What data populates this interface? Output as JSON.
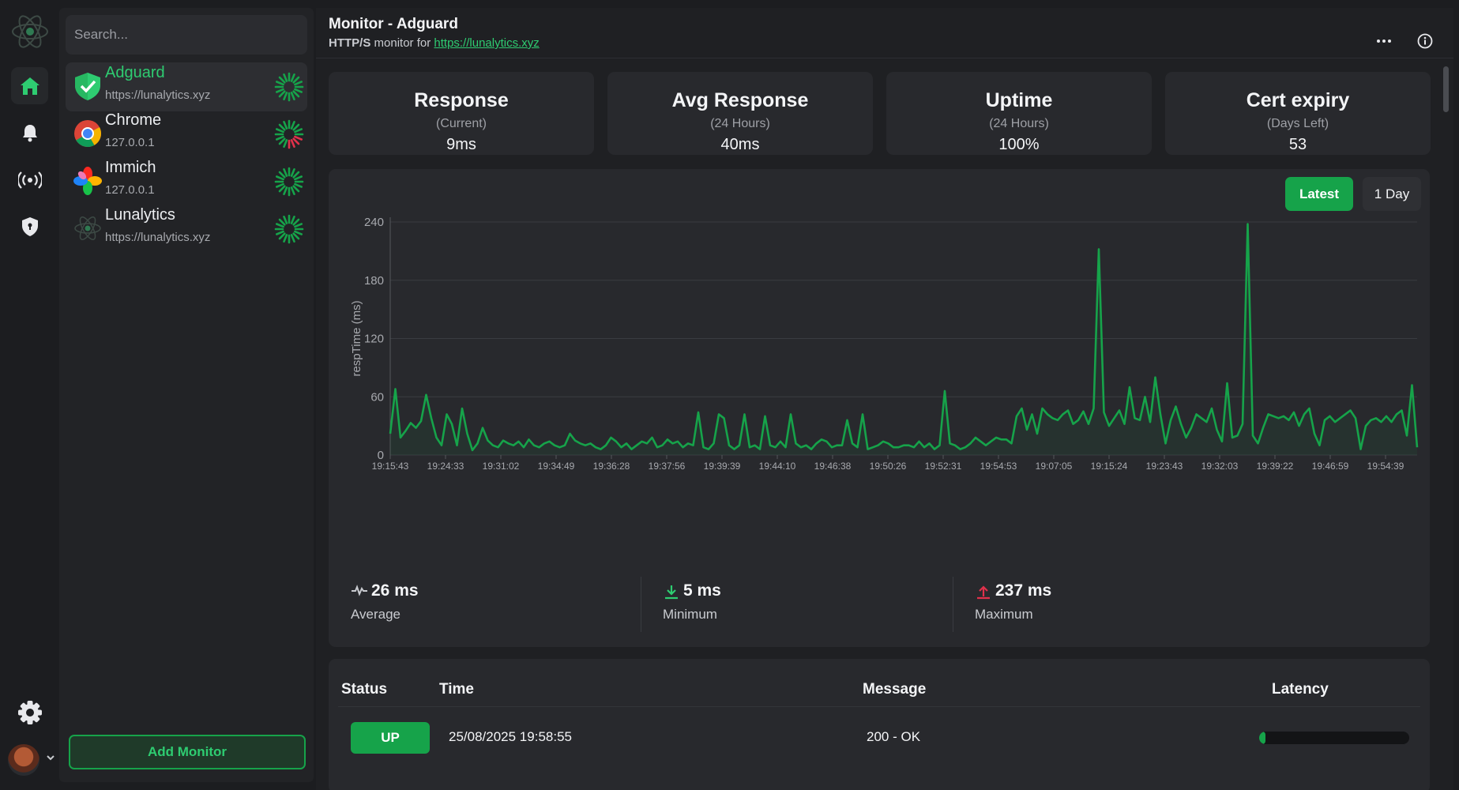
{
  "colors": {
    "accent": "#16a34a",
    "accent_light": "#2ecc71",
    "danger": "#e0314b",
    "bg": "#1c1d20",
    "card": "#28292d"
  },
  "rail": {
    "icons": [
      "atom-logo-icon",
      "home-icon",
      "bell-icon",
      "broadcast-icon",
      "shield-icon",
      "gear-icon",
      "avatar",
      "chevron-down-icon"
    ]
  },
  "search": {
    "placeholder": "Search..."
  },
  "monitors": [
    {
      "name": "Adguard",
      "url": "https://lunalytics.xyz",
      "icon": "adguard-icon",
      "status": "up"
    },
    {
      "name": "Chrome",
      "url": "127.0.0.1",
      "icon": "chrome-icon",
      "status": "mixed"
    },
    {
      "name": "Immich",
      "url": "127.0.0.1",
      "icon": "immich-icon",
      "status": "up"
    },
    {
      "name": "Lunalytics",
      "url": "https://lunalytics.xyz",
      "icon": "lunalytics-icon",
      "status": "up"
    }
  ],
  "add_monitor_label": "Add Monitor",
  "header": {
    "title": "Monitor - Adguard",
    "type": "HTTP/S",
    "monitor_for": "monitor for",
    "url": "https://lunalytics.xyz"
  },
  "stats": [
    {
      "title": "Response",
      "sub": "(Current)",
      "value": "9ms"
    },
    {
      "title": "Avg Response",
      "sub": "(24 Hours)",
      "value": "40ms"
    },
    {
      "title": "Uptime",
      "sub": "(24 Hours)",
      "value": "100%"
    },
    {
      "title": "Cert expiry",
      "sub": "(Days Left)",
      "value": "53"
    }
  ],
  "range_buttons": {
    "latest": "Latest",
    "day": "1 Day"
  },
  "chart_data": {
    "type": "area",
    "title": "",
    "xlabel": "",
    "ylabel": "respTime (ms)",
    "ylim": [
      0,
      240
    ],
    "yticks": [
      0,
      60,
      120,
      180,
      240
    ],
    "x_ticks": [
      "19:15:43",
      "19:24:33",
      "19:31:02",
      "19:34:49",
      "19:36:28",
      "19:37:56",
      "19:39:39",
      "19:44:10",
      "19:46:38",
      "19:50:26",
      "19:52:31",
      "19:54:53",
      "19:07:05",
      "19:15:24",
      "19:23:43",
      "19:32:03",
      "19:39:22",
      "19:46:59",
      "19:54:39"
    ],
    "grid": true,
    "series": [
      {
        "values": [
          22,
          68,
          18,
          25,
          33,
          28,
          35,
          62,
          38,
          18,
          10,
          42,
          32,
          10,
          48,
          22,
          5,
          12,
          28,
          15,
          10,
          8,
          15,
          12,
          10,
          14,
          8,
          16,
          10,
          8,
          12,
          14,
          10,
          8,
          10,
          22,
          15,
          12,
          10,
          12,
          8,
          6,
          10,
          18,
          14,
          8,
          12,
          6,
          10,
          14,
          12,
          18,
          8,
          10,
          16,
          12,
          14,
          8,
          12,
          10,
          44,
          8,
          6,
          12,
          42,
          38,
          10,
          6,
          10,
          42,
          8,
          10,
          6,
          40,
          10,
          8,
          14,
          8,
          42,
          12,
          8,
          10,
          6,
          12,
          16,
          14,
          8,
          10,
          10,
          36,
          12,
          8,
          42,
          6,
          8,
          10,
          14,
          12,
          8,
          8,
          10,
          10,
          8,
          14,
          8,
          12,
          6,
          10,
          66,
          12,
          10,
          6,
          8,
          12,
          18,
          14,
          10,
          14,
          18,
          16,
          16,
          12,
          40,
          48,
          26,
          42,
          22,
          48,
          42,
          38,
          36,
          42,
          46,
          32,
          36,
          45,
          32,
          48,
          212,
          44,
          30,
          38,
          46,
          32,
          70,
          38,
          36,
          60,
          34,
          80,
          42,
          12,
          36,
          50,
          32,
          18,
          28,
          42,
          38,
          34,
          48,
          26,
          14,
          74,
          18,
          20,
          32,
          238,
          20,
          12,
          28,
          42,
          40,
          38,
          40,
          36,
          44,
          30,
          42,
          48,
          22,
          10,
          36,
          40,
          34,
          38,
          42,
          46,
          38,
          6,
          30,
          36,
          38,
          34,
          40,
          34,
          42,
          46,
          20,
          72,
          8
        ]
      }
    ],
    "summary": {
      "average": {
        "value": "26 ms",
        "label": "Average"
      },
      "minimum": {
        "value": "5 ms",
        "label": "Minimum"
      },
      "maximum": {
        "value": "237 ms",
        "label": "Maximum"
      }
    }
  },
  "table": {
    "headers": {
      "status": "Status",
      "time": "Time",
      "message": "Message",
      "latency": "Latency"
    },
    "rows": [
      {
        "status": "UP",
        "time": "25/08/2025 19:58:55",
        "message": "200 - OK",
        "latency_fraction": 0.04
      }
    ]
  }
}
